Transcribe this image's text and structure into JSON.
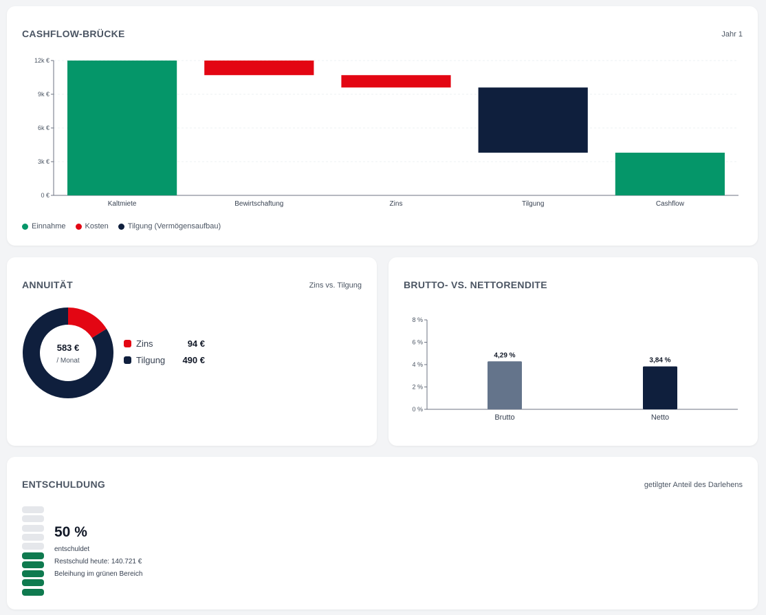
{
  "cashflow": {
    "title": "CASHFLOW-BRÜCKE",
    "subtitle": "Jahr 1",
    "legend": [
      {
        "label": "Einnahme",
        "color": "#059669"
      },
      {
        "label": "Kosten",
        "color": "#e30613"
      },
      {
        "label": "Tilgung (Vermögensaufbau)",
        "color": "#0f1f3d"
      }
    ]
  },
  "annuitaet": {
    "title": "ANNUITÄT",
    "subtitle": "Zins vs. Tilgung",
    "center_value": "583 €",
    "center_label": "/ Monat",
    "items": [
      {
        "label": "Zins",
        "value": "94 €",
        "color": "#e30613",
        "amount": 94
      },
      {
        "label": "Tilgung",
        "value": "490 €",
        "color": "#0f1f3d",
        "amount": 490
      }
    ]
  },
  "rendite": {
    "title": "BRUTTO- VS. NETTORENDITE"
  },
  "entschuldung": {
    "title": "ENTSCHULDUNG",
    "subtitle": "getilgter Anteil des Darlehens",
    "percent_text": "50 %",
    "percent_label": "entschuldet",
    "restschuld": "Restschuld heute: 140.721 €",
    "beleihung": "Beleihung im grünen Bereich",
    "progress_fraction": 0.5,
    "segments_total": 10,
    "color_filled": "#0f7a4f",
    "color_empty": "#e5e7eb"
  },
  "chart_data": [
    {
      "type": "bar",
      "subtype": "waterfall",
      "categories": [
        "Kaltmiete",
        "Bewirtschaftung",
        "Zins",
        "Tilgung",
        "Cashflow"
      ],
      "ranges": [
        [
          0,
          12000
        ],
        [
          10700,
          12000
        ],
        [
          9600,
          10700
        ],
        [
          3800,
          9600
        ],
        [
          0,
          3800
        ]
      ],
      "kinds": [
        "Einnahme",
        "Kosten",
        "Kosten",
        "Tilgung",
        "Einnahme"
      ],
      "colors": {
        "Einnahme": "#059669",
        "Kosten": "#e30613",
        "Tilgung": "#0f1f3d"
      },
      "ylim": [
        0,
        12000
      ],
      "yticks": [
        0,
        3000,
        6000,
        9000,
        12000
      ],
      "ytick_labels": [
        "0 €",
        "3k €",
        "6k €",
        "9k €",
        "12k €"
      ],
      "grid": true
    },
    {
      "type": "bar",
      "categories": [
        "Brutto",
        "Netto"
      ],
      "values": [
        4.29,
        3.84
      ],
      "value_labels": [
        "4,29 %",
        "3,84 %"
      ],
      "colors": [
        "#64748b",
        "#0f1f3d"
      ],
      "ylim": [
        0,
        8
      ],
      "yticks": [
        0,
        2,
        4,
        6,
        8
      ],
      "ytick_labels": [
        "0 %",
        "2 %",
        "4 %",
        "6 %",
        "8 %"
      ]
    }
  ]
}
